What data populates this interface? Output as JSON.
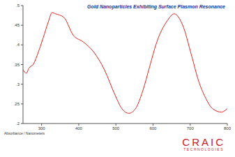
{
  "chart_data": {
    "type": "line",
    "title": "Gold Nanoparticles Exhibiting Surface Plasmon Resonance",
    "x_label": "Absorbance / Nanometers",
    "logo": [
      "CRAIC",
      "TECHNOLOGIES"
    ],
    "x": [
      250,
      259,
      266,
      278,
      291,
      304,
      319,
      328,
      338,
      360,
      385,
      413,
      441,
      469,
      497,
      516,
      535,
      553,
      572,
      591,
      610,
      638,
      657,
      679,
      704,
      722,
      741,
      760,
      784,
      800
    ],
    "values": [
      0.337,
      0.328,
      0.341,
      0.351,
      0.381,
      0.417,
      0.461,
      0.482,
      0.479,
      0.47,
      0.425,
      0.407,
      0.381,
      0.337,
      0.274,
      0.238,
      0.226,
      0.238,
      0.282,
      0.345,
      0.407,
      0.461,
      0.479,
      0.452,
      0.372,
      0.31,
      0.266,
      0.238,
      0.229,
      0.238
    ],
    "color": "#e8231f",
    "xlim": [
      250,
      800
    ],
    "xticks": [
      300,
      400,
      500,
      600,
      700,
      800
    ],
    "ylim": [
      0.2,
      0.5
    ],
    "yticks": [
      {
        "value": 0.2,
        "label": ".2"
      },
      {
        "value": 0.25,
        "label": ".25"
      },
      {
        "value": 0.3,
        "label": ".3"
      },
      {
        "value": 0.35,
        "label": ".35"
      },
      {
        "value": 0.4,
        "label": ".4"
      },
      {
        "value": 0.45,
        "label": ".45"
      },
      {
        "value": 0.5,
        "label": ".5"
      }
    ],
    "grid": false
  }
}
